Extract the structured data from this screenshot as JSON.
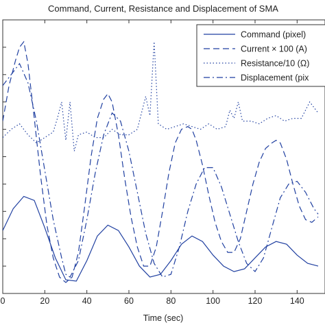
{
  "chart_data": {
    "type": "line",
    "title": "Command, Current, Resistance and Displacement of SMA",
    "xlabel": "Time (sec)",
    "ylabel": "",
    "xlim": [
      0,
      150
    ],
    "ylim": [
      0,
      1
    ],
    "x_ticks": [
      0,
      20,
      40,
      60,
      80,
      100,
      120,
      140
    ],
    "legend": "top-right",
    "color": "#1f3fa0",
    "series": [
      {
        "name": "Command (pixel)",
        "style": "solid",
        "x": [
          0,
          5,
          10,
          15,
          20,
          25,
          30,
          35,
          40,
          45,
          50,
          55,
          60,
          65,
          70,
          75,
          80,
          85,
          90,
          95,
          100,
          105,
          110,
          115,
          120,
          125,
          130,
          135,
          140,
          145,
          150
        ],
        "y": [
          0.23,
          0.31,
          0.355,
          0.34,
          0.24,
          0.13,
          0.05,
          0.045,
          0.12,
          0.21,
          0.25,
          0.23,
          0.17,
          0.1,
          0.06,
          0.07,
          0.12,
          0.18,
          0.21,
          0.19,
          0.14,
          0.1,
          0.08,
          0.09,
          0.13,
          0.17,
          0.19,
          0.18,
          0.14,
          0.11,
          0.1
        ]
      },
      {
        "name": "Current × 100 (A)",
        "style": "dashed",
        "x": [
          0,
          3,
          6,
          8,
          10,
          12,
          15,
          18,
          21,
          24,
          27,
          30,
          33,
          36,
          39,
          42,
          45,
          48,
          50,
          52,
          55,
          58,
          61,
          64,
          67,
          70,
          73,
          76,
          79,
          82,
          85,
          88,
          90,
          92,
          95,
          98,
          101,
          104,
          107,
          110,
          113,
          116,
          119,
          122,
          125,
          128,
          130,
          132,
          135,
          138,
          141,
          144,
          147,
          150
        ],
        "y": [
          0.63,
          0.76,
          0.85,
          0.9,
          0.92,
          0.84,
          0.64,
          0.43,
          0.25,
          0.13,
          0.06,
          0.04,
          0.06,
          0.15,
          0.32,
          0.5,
          0.64,
          0.71,
          0.73,
          0.7,
          0.58,
          0.42,
          0.28,
          0.17,
          0.1,
          0.1,
          0.17,
          0.3,
          0.44,
          0.55,
          0.6,
          0.61,
          0.6,
          0.56,
          0.47,
          0.36,
          0.26,
          0.19,
          0.15,
          0.15,
          0.2,
          0.3,
          0.4,
          0.48,
          0.53,
          0.55,
          0.56,
          0.55,
          0.49,
          0.4,
          0.32,
          0.27,
          0.26,
          0.28
        ]
      },
      {
        "name": "Resistance/10 (Ω)",
        "style": "dotted",
        "x": [
          0,
          4,
          8,
          12,
          16,
          20,
          24,
          26,
          28,
          30,
          32,
          34,
          36,
          40,
          44,
          48,
          52,
          56,
          60,
          64,
          66,
          68,
          70,
          72,
          74,
          78,
          82,
          86,
          90,
          94,
          98,
          102,
          106,
          108,
          110,
          112,
          114,
          118,
          122,
          126,
          130,
          134,
          138,
          142,
          146,
          150
        ],
        "y": [
          0.57,
          0.6,
          0.62,
          0.58,
          0.55,
          0.57,
          0.59,
          0.64,
          0.7,
          0.56,
          0.7,
          0.52,
          0.58,
          0.59,
          0.57,
          0.57,
          0.6,
          0.58,
          0.58,
          0.6,
          0.66,
          0.72,
          0.65,
          0.92,
          0.62,
          0.6,
          0.61,
          0.62,
          0.61,
          0.6,
          0.62,
          0.6,
          0.61,
          0.67,
          0.64,
          0.7,
          0.63,
          0.63,
          0.62,
          0.64,
          0.65,
          0.63,
          0.64,
          0.64,
          0.7,
          0.66
        ]
      },
      {
        "name": "Displacement (pix",
        "style": "dashdot",
        "x": [
          0,
          4,
          8,
          12,
          16,
          20,
          24,
          28,
          30,
          32,
          36,
          40,
          44,
          48,
          52,
          56,
          60,
          64,
          68,
          72,
          76,
          80,
          84,
          88,
          92,
          96,
          100,
          104,
          108,
          112,
          116,
          120,
          124,
          128,
          132,
          136,
          140,
          144,
          148,
          150
        ],
        "y": [
          0.76,
          0.8,
          0.84,
          0.77,
          0.63,
          0.45,
          0.27,
          0.13,
          0.07,
          0.06,
          0.12,
          0.27,
          0.44,
          0.58,
          0.66,
          0.63,
          0.52,
          0.37,
          0.22,
          0.11,
          0.06,
          0.07,
          0.17,
          0.3,
          0.4,
          0.46,
          0.46,
          0.39,
          0.29,
          0.19,
          0.11,
          0.08,
          0.13,
          0.24,
          0.35,
          0.4,
          0.41,
          0.37,
          0.31,
          0.29
        ]
      }
    ]
  }
}
